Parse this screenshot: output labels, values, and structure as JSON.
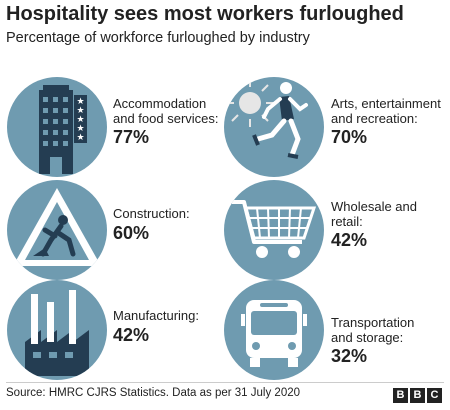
{
  "header": {
    "title": "Hospitality sees most workers furloughed",
    "subtitle": "Percentage of workforce furloughed by industry"
  },
  "colors": {
    "circle_bg": "#6f9bb0",
    "icon_dark": "#243d52",
    "text": "#222222"
  },
  "chart_data": {
    "type": "table",
    "title": "Hospitality sees most workers furloughed",
    "subtitle": "Percentage of workforce furloughed by industry",
    "unit": "%",
    "rows": [
      {
        "icon": "hotel-building-icon",
        "label": "Accommodation and food services:",
        "value": 77,
        "display": "77%"
      },
      {
        "icon": "runner-sun-icon",
        "label": "Arts, entertainment and recreation:",
        "value": 70,
        "display": "70%"
      },
      {
        "icon": "roadworks-sign-icon",
        "label": "Construction:",
        "value": 60,
        "display": "60%"
      },
      {
        "icon": "shopping-trolley-icon",
        "label": "Wholesale and retail:",
        "value": 42,
        "display": "42%"
      },
      {
        "icon": "factory-icon",
        "label": "Manufacturing:",
        "value": 42,
        "display": "42%"
      },
      {
        "icon": "bus-icon",
        "label": "Transportation and storage:",
        "value": 32,
        "display": "32%"
      }
    ]
  },
  "footer": {
    "source": "Source: HMRC CJRS Statistics. Data as per 31 July 2020",
    "logo_letters": [
      "B",
      "B",
      "C"
    ]
  }
}
